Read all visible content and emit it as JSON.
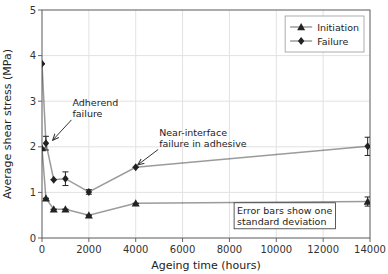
{
  "chart_data": {
    "type": "line",
    "xlabel": "Ageing time (hours)",
    "ylabel": "Average shear stress (MPa)",
    "x": [
      0,
      168,
      500,
      1000,
      2000,
      4000,
      13900
    ],
    "series": [
      {
        "name": "Initiation",
        "color": "#222222",
        "marker": "triangle",
        "line_style": "solid",
        "values": [
          1.97,
          0.87,
          0.63,
          0.63,
          0.5,
          0.76,
          0.8
        ],
        "errors": [
          0.0,
          0.0,
          0.0,
          0.0,
          0.0,
          0.0,
          0.1
        ]
      },
      {
        "name": "Failure",
        "color": "#222222",
        "marker": "diamond",
        "line_style": "solid",
        "values": [
          3.82,
          2.08,
          1.28,
          1.3,
          1.01,
          1.55,
          2.01
        ],
        "errors": [
          0.0,
          0.15,
          0.0,
          0.15,
          0.05,
          0.0,
          0.2
        ]
      }
    ],
    "xlim": [
      0,
      14000
    ],
    "ylim": [
      0.0,
      5.0
    ],
    "xticks": [
      0,
      2000,
      4000,
      6000,
      8000,
      10000,
      12000,
      14000
    ],
    "yticks": [
      0,
      1,
      2,
      3,
      4,
      5
    ],
    "grid": true,
    "legend": "upper right",
    "annotations": [
      {
        "text": "Adherend\nfailure",
        "x": 340,
        "y": 2.08,
        "text_x": 1300,
        "text_y": 2.85
      },
      {
        "text": "Near-interface\nfailure in adhesive",
        "x": 3950,
        "y": 1.55,
        "text_x": 5000,
        "text_y": 2.2
      },
      {
        "text": "Error bars show one\nstandard deviation",
        "text_x": 8200,
        "text_y": 0.15
      }
    ]
  }
}
